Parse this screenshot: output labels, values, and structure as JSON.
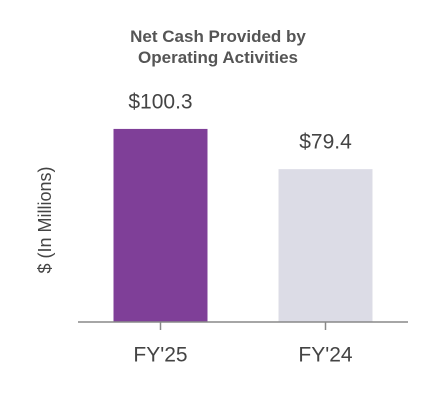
{
  "chart_data": {
    "type": "bar",
    "title": "Net Cash Provided by Operating Activities",
    "y_label": "$ (In Millions)",
    "categories": [
      "FY'25",
      "FY'24"
    ],
    "values": [
      100.3,
      79.4
    ],
    "value_labels": [
      "$100.3",
      "$79.4"
    ],
    "colors": [
      "#7f3f98",
      "#dcdce6"
    ],
    "ylim": [
      0,
      120
    ]
  }
}
